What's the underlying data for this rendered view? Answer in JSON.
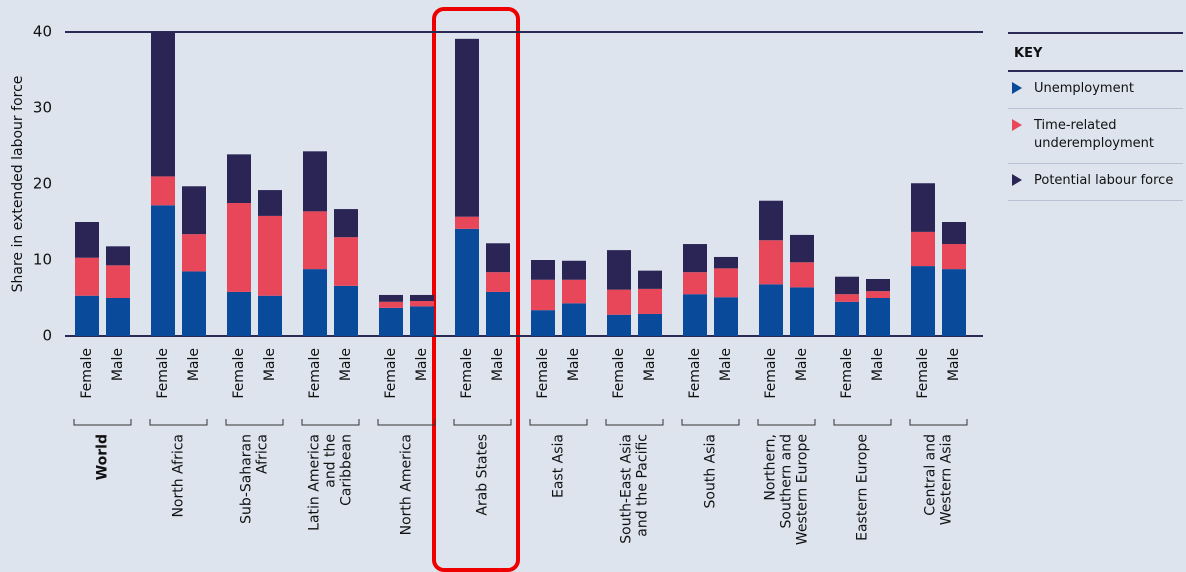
{
  "chart_data": {
    "type": "stacked_bar",
    "ylabel": "Share in extended labour force",
    "ylim": [
      0,
      40
    ],
    "yticks": [
      0,
      10,
      20,
      30,
      40
    ],
    "legend_title": "KEY",
    "categories": [
      "Female",
      "Male",
      "Female",
      "Male",
      "Female",
      "Male",
      "Female",
      "Male",
      "Female",
      "Male",
      "Female",
      "Male",
      "Female",
      "Male",
      "Female",
      "Male",
      "Female",
      "Male",
      "Female",
      "Male",
      "Female",
      "Male",
      "Female",
      "Male"
    ],
    "groups": [
      [
        "World"
      ],
      [
        "North Africa"
      ],
      [
        "Sub-Saharan",
        "Africa"
      ],
      [
        "Latin America",
        "and the",
        "Caribbean"
      ],
      [
        "North America"
      ],
      [
        "Arab States"
      ],
      [
        "East Asia"
      ],
      [
        "South-East Asia",
        "and the Pacific"
      ],
      [
        "South Asia"
      ],
      [
        "Northern,",
        "Southern and",
        "Western Europe"
      ],
      [
        "Eastern Europe"
      ],
      [
        "Central and",
        "Western Asia"
      ]
    ],
    "series": [
      {
        "name": "Unemployment",
        "color": "#0a4a9a",
        "values": [
          5.3,
          5.0,
          17.2,
          8.5,
          5.8,
          5.3,
          8.8,
          6.6,
          3.7,
          3.9,
          14.1,
          5.8,
          3.4,
          4.3,
          2.8,
          2.9,
          5.5,
          5.1,
          6.8,
          6.4,
          4.5,
          5.0,
          9.2,
          8.8
        ]
      },
      {
        "name": "Time-related underemployment",
        "color": "#e8475a",
        "values": [
          5.0,
          4.3,
          3.8,
          4.9,
          11.7,
          10.5,
          7.6,
          6.4,
          0.8,
          0.7,
          1.6,
          2.6,
          4.0,
          3.1,
          3.3,
          3.3,
          2.9,
          3.8,
          5.8,
          3.3,
          1.0,
          0.9,
          4.5,
          3.3
        ]
      },
      {
        "name": "Potential labour force",
        "color": "#2b2555",
        "values": [
          4.7,
          2.5,
          19.0,
          6.3,
          6.4,
          3.4,
          7.9,
          3.7,
          0.9,
          0.8,
          23.4,
          3.8,
          2.6,
          2.5,
          5.2,
          2.4,
          3.7,
          1.5,
          5.2,
          3.6,
          2.3,
          1.6,
          6.4,
          2.9
        ]
      }
    ]
  }
}
